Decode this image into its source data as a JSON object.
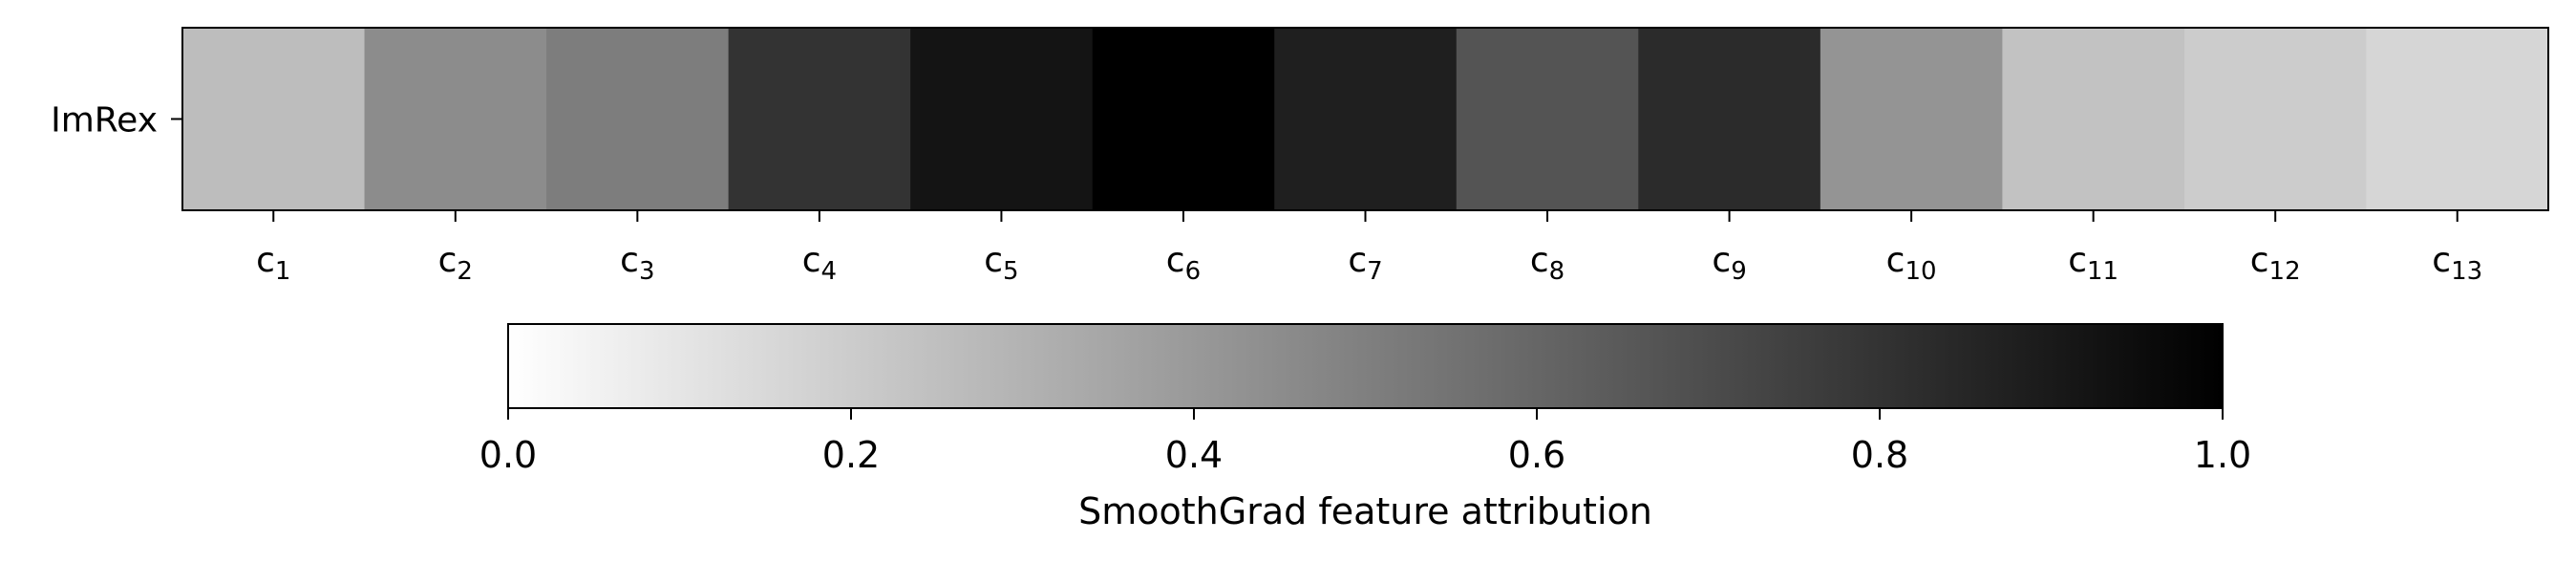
{
  "chart_data": {
    "type": "heatmap",
    "title": "",
    "rows": [
      "ImRex"
    ],
    "columns": [
      {
        "base": "c",
        "sub": "1"
      },
      {
        "base": "c",
        "sub": "2"
      },
      {
        "base": "c",
        "sub": "3"
      },
      {
        "base": "c",
        "sub": "4"
      },
      {
        "base": "c",
        "sub": "5"
      },
      {
        "base": "c",
        "sub": "6"
      },
      {
        "base": "c",
        "sub": "7"
      },
      {
        "base": "c",
        "sub": "8"
      },
      {
        "base": "c",
        "sub": "9"
      },
      {
        "base": "c",
        "sub": "10"
      },
      {
        "base": "c",
        "sub": "11"
      },
      {
        "base": "c",
        "sub": "12"
      },
      {
        "base": "c",
        "sub": "13"
      }
    ],
    "values": [
      [
        0.26,
        0.45,
        0.51,
        0.8,
        0.92,
        1.0,
        0.88,
        0.67,
        0.83,
        0.42,
        0.24,
        0.2,
        0.16
      ]
    ],
    "colormap": "Greys",
    "vmin": 0.0,
    "vmax": 1.0,
    "colorbar": {
      "label": "SmoothGrad feature attribution",
      "ticks": [
        "0.0",
        "0.2",
        "0.4",
        "0.6",
        "0.8",
        "1.0"
      ],
      "orientation": "horizontal",
      "placement": "bottom"
    }
  }
}
